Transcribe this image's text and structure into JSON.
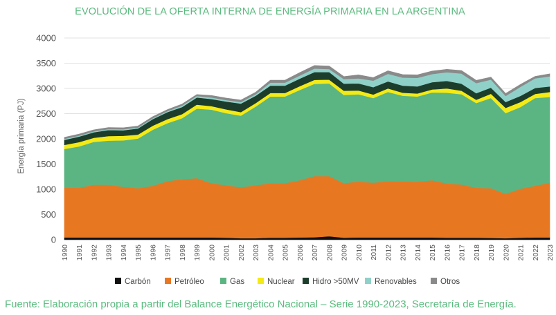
{
  "chart_data": {
    "type": "area",
    "stacked": true,
    "title": "EVOLUCIÓN DE LA OFERTA INTERNA DE ENERGÍA PRIMARIA EN LA ARGENTINA",
    "ylabel": "Energía primaria (PJ)",
    "xlabel": "",
    "ylim": [
      0,
      4000
    ],
    "yticks": [
      "0",
      "500",
      "1000",
      "1500",
      "2000",
      "2500",
      "3000",
      "3500",
      "4000"
    ],
    "grid": "horizontal",
    "legend": "bottom",
    "x": [
      "1990",
      "1991",
      "1992",
      "1993",
      "1994",
      "1995",
      "1996",
      "1997",
      "1998",
      "1999",
      "2000",
      "2001",
      "2002",
      "2003",
      "2004",
      "2005",
      "2006",
      "2007",
      "2008",
      "2009",
      "2010",
      "2011",
      "2012",
      "2013",
      "2014",
      "2015",
      "2016",
      "2017",
      "2018",
      "2019",
      "2020",
      "2021",
      "2022",
      "2023"
    ],
    "series": [
      {
        "name": "Carbón",
        "color": "#111111",
        "values": [
          45,
          45,
          45,
          45,
          45,
          45,
          45,
          45,
          45,
          45,
          45,
          40,
          30,
          30,
          40,
          40,
          45,
          50,
          70,
          40,
          45,
          45,
          45,
          45,
          45,
          45,
          40,
          40,
          40,
          35,
          30,
          40,
          45,
          45
        ]
      },
      {
        "name": "Petróleo",
        "color": "#e87722",
        "values": [
          985,
          985,
          1045,
          1045,
          1005,
          975,
          1025,
          1115,
          1155,
          1175,
          1075,
          1040,
          1010,
          1050,
          1080,
          1080,
          1135,
          1210,
          1190,
          1080,
          1110,
          1085,
          1115,
          1110,
          1105,
          1135,
          1075,
          1055,
          990,
          985,
          880,
          970,
          1025,
          1085
        ]
      },
      {
        "name": "Gas",
        "color": "#5bb583",
        "values": [
          770,
          820,
          850,
          875,
          920,
          985,
          1110,
          1150,
          1210,
          1380,
          1460,
          1430,
          1420,
          1560,
          1720,
          1720,
          1790,
          1830,
          1840,
          1750,
          1730,
          1680,
          1770,
          1700,
          1690,
          1740,
          1800,
          1790,
          1680,
          1790,
          1600,
          1620,
          1740,
          1700
        ]
      },
      {
        "name": "Nuclear",
        "color": "#f4ea15",
        "values": [
          80,
          85,
          80,
          90,
          90,
          80,
          80,
          80,
          80,
          80,
          70,
          75,
          70,
          70,
          70,
          70,
          75,
          80,
          75,
          85,
          75,
          70,
          70,
          60,
          60,
          60,
          85,
          70,
          65,
          85,
          105,
          100,
          80,
          100
        ]
      },
      {
        "name": "Hidro >50MV",
        "color": "#1d3d2c",
        "values": [
          100,
          110,
          110,
          120,
          110,
          120,
          130,
          140,
          140,
          140,
          140,
          155,
          170,
          145,
          145,
          145,
          150,
          155,
          150,
          140,
          140,
          145,
          140,
          140,
          140,
          145,
          150,
          140,
          130,
          120,
          115,
          120,
          120,
          110
        ]
      },
      {
        "name": "Renovables",
        "color": "#8fd1c8",
        "values": [
          20,
          20,
          20,
          20,
          20,
          20,
          20,
          20,
          30,
          30,
          30,
          30,
          30,
          30,
          60,
          60,
          60,
          70,
          60,
          90,
          100,
          130,
          150,
          160,
          170,
          160,
          170,
          200,
          200,
          160,
          120,
          180,
          190,
          200
        ]
      },
      {
        "name": "Otros",
        "color": "#8a8a8a",
        "values": [
          30,
          30,
          30,
          30,
          30,
          30,
          30,
          30,
          30,
          30,
          40,
          40,
          40,
          40,
          50,
          50,
          60,
          60,
          60,
          50,
          70,
          60,
          60,
          60,
          60,
          60,
          60,
          60,
          55,
          50,
          50,
          50,
          40,
          50
        ]
      }
    ]
  },
  "source_note": "Fuente: Elaboración propia a partir del Balance Energético Nacional – Serie 1990-2023, Secretaría de Energía."
}
